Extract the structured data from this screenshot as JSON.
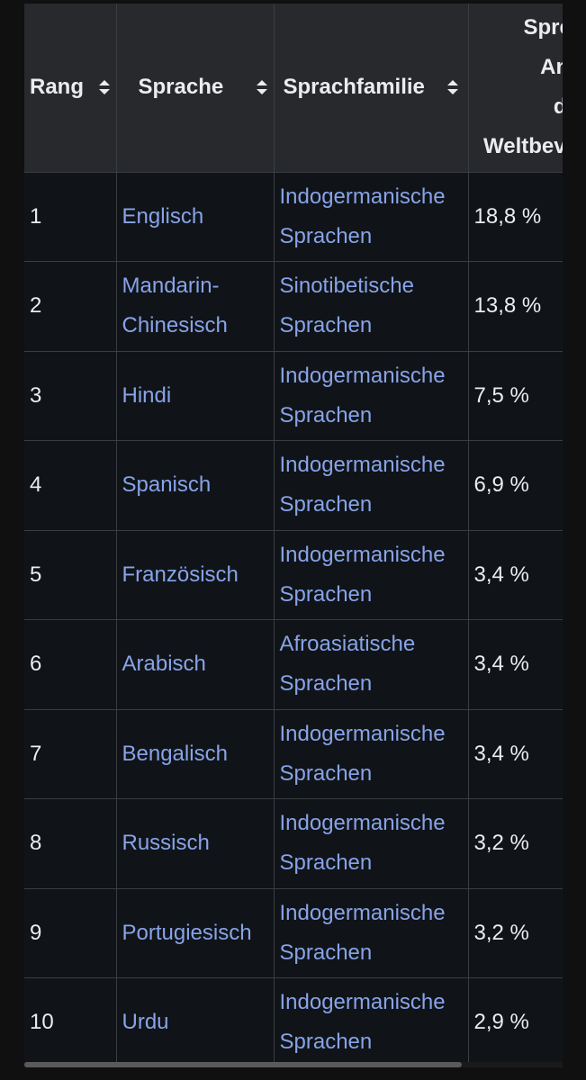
{
  "table": {
    "headers": {
      "rank": "Rang",
      "language": "Sprache",
      "family": "Sprachfamilie",
      "share_lines": [
        "Sprecher",
        "Anteil",
        "der",
        "Weltbevölkerung"
      ]
    },
    "rows": [
      {
        "rank": "1",
        "language": "Englisch",
        "family": "Indogermanische Sprachen",
        "share": "18,8 %"
      },
      {
        "rank": "2",
        "language": "Mandarin-Chinesisch",
        "family": "Sinotibetische Sprachen",
        "share": "13,8 %"
      },
      {
        "rank": "3",
        "language": "Hindi",
        "family": "Indogermanische Sprachen",
        "share": "7,5 %"
      },
      {
        "rank": "4",
        "language": "Spanisch",
        "family": "Indogermanische Sprachen",
        "share": "6,9 %"
      },
      {
        "rank": "5",
        "language": "Französisch",
        "family": "Indogermanische Sprachen",
        "share": "3,4 %"
      },
      {
        "rank": "6",
        "language": "Arabisch",
        "family": "Afroasiatische Sprachen",
        "share": "3,4 %"
      },
      {
        "rank": "7",
        "language": "Bengalisch",
        "family": "Indogermanische Sprachen",
        "share": "3,4 %"
      },
      {
        "rank": "8",
        "language": "Russisch",
        "family": "Indogermanische Sprachen",
        "share": "3,2 %"
      },
      {
        "rank": "9",
        "language": "Portugiesisch",
        "family": "Indogermanische Sprachen",
        "share": "3,2 %"
      },
      {
        "rank": "10",
        "language": "Urdu",
        "family": "Indogermanische Sprachen",
        "share": "2,9 %"
      }
    ]
  },
  "colors": {
    "link": "#88a3e8",
    "header_bg": "#27292d",
    "page_bg": "#101010",
    "text": "#eaecf0"
  },
  "icons": {
    "sort": "sort-icon"
  }
}
